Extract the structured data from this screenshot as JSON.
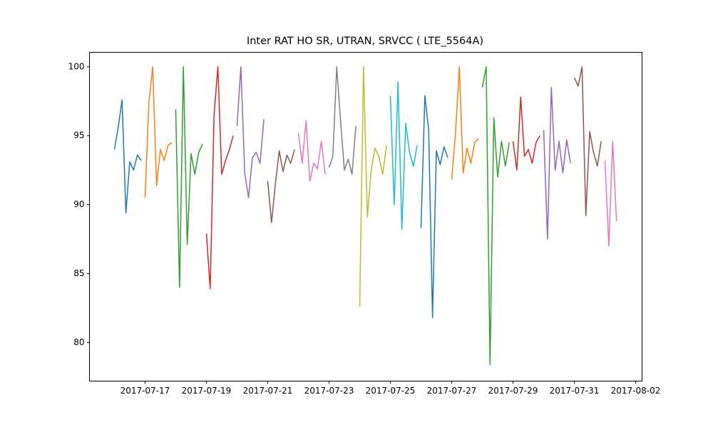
{
  "chart_data": {
    "type": "line",
    "title": "Inter RAT HO SR, UTRAN, SRVCC ( LTE_5564A)",
    "xlim": [
      "2017-07-15 04:30",
      "2017-08-02 05:00"
    ],
    "xticks": [
      "2017-07-17",
      "2017-07-19",
      "2017-07-21",
      "2017-07-23",
      "2017-07-25",
      "2017-07-27",
      "2017-07-29",
      "2017-07-31",
      "2017-08-02"
    ],
    "ylim": [
      77.2,
      101.05
    ],
    "yticks": [
      80,
      85,
      90,
      95,
      100
    ],
    "grid": false,
    "series": [
      {
        "color": "#1f77b4",
        "x": [
          "2017-07-16 00:00",
          "2017-07-16 03:00",
          "2017-07-16 06:00",
          "2017-07-16 09:00",
          "2017-07-16 12:00",
          "2017-07-16 15:00",
          "2017-07-16 18:00",
          "2017-07-16 21:00"
        ],
        "values": [
          94,
          95.6,
          97.6,
          89.4,
          93.1,
          92.5,
          93.6,
          93.2
        ]
      },
      {
        "color": "#ff7f0e",
        "x": [
          "2017-07-17 00:00",
          "2017-07-17 03:00",
          "2017-07-17 06:00",
          "2017-07-17 09:00",
          "2017-07-17 12:00",
          "2017-07-17 15:00",
          "2017-07-17 18:00",
          "2017-07-17 21:00"
        ],
        "values": [
          90.5,
          97.4,
          100,
          91.4,
          94,
          93.2,
          94.3,
          94.5
        ]
      },
      {
        "color": "#2ca02c",
        "x": [
          "2017-07-18 00:00",
          "2017-07-18 03:00",
          "2017-07-18 06:00",
          "2017-07-18 09:00",
          "2017-07-18 12:00",
          "2017-07-18 15:00",
          "2017-07-18 18:00",
          "2017-07-18 21:00"
        ],
        "values": [
          96.9,
          84,
          100,
          87.1,
          93.7,
          92.2,
          93.8,
          94.4
        ]
      },
      {
        "color": "#d62728",
        "x": [
          "2017-07-19 00:00",
          "2017-07-19 03:00",
          "2017-07-19 06:00",
          "2017-07-19 09:00",
          "2017-07-19 12:00",
          "2017-07-19 15:00",
          "2017-07-19 18:00",
          "2017-07-19 21:00"
        ],
        "values": [
          87.9,
          83.9,
          96.5,
          100,
          92.2,
          93.2,
          94,
          95
        ]
      },
      {
        "color": "#9467bd",
        "x": [
          "2017-07-20 00:00",
          "2017-07-20 03:00",
          "2017-07-20 06:00",
          "2017-07-20 09:00",
          "2017-07-20 12:00",
          "2017-07-20 15:00",
          "2017-07-20 18:00",
          "2017-07-20 21:00"
        ],
        "values": [
          95.7,
          100,
          92.3,
          90.5,
          93.4,
          93.8,
          93,
          96.2
        ]
      },
      {
        "color": "#8c564b",
        "x": [
          "2017-07-21 00:00",
          "2017-07-21 03:00",
          "2017-07-21 06:00",
          "2017-07-21 09:00",
          "2017-07-21 12:00",
          "2017-07-21 15:00",
          "2017-07-21 18:00",
          "2017-07-21 21:00"
        ],
        "values": [
          91.7,
          88.7,
          91.5,
          93.9,
          92.4,
          93.6,
          93,
          94
        ]
      },
      {
        "color": "#e377c2",
        "x": [
          "2017-07-22 00:00",
          "2017-07-22 03:00",
          "2017-07-22 06:00",
          "2017-07-22 09:00",
          "2017-07-22 12:00",
          "2017-07-22 15:00",
          "2017-07-22 18:00",
          "2017-07-22 21:00"
        ],
        "values": [
          95.2,
          93,
          96.1,
          91.7,
          93,
          92.6,
          94.6,
          92.2
        ]
      },
      {
        "color": "#7f7f7f",
        "x": [
          "2017-07-23 00:00",
          "2017-07-23 03:00",
          "2017-07-23 06:00",
          "2017-07-23 09:00",
          "2017-07-23 12:00",
          "2017-07-23 15:00",
          "2017-07-23 18:00",
          "2017-07-23 21:00"
        ],
        "values": [
          92.7,
          93.5,
          100,
          96.1,
          92.5,
          93.3,
          92.2,
          95.7
        ]
      },
      {
        "color": "#bcbd22",
        "x": [
          "2017-07-24 00:00",
          "2017-07-24 03:00",
          "2017-07-24 06:00",
          "2017-07-24 09:00",
          "2017-07-24 12:00",
          "2017-07-24 15:00",
          "2017-07-24 18:00",
          "2017-07-24 21:00"
        ],
        "values": [
          82.6,
          100,
          89.1,
          92.5,
          94.1,
          93.5,
          92.2,
          94.3
        ]
      },
      {
        "color": "#17becf",
        "x": [
          "2017-07-25 00:00",
          "2017-07-25 03:00",
          "2017-07-25 06:00",
          "2017-07-25 09:00",
          "2017-07-25 12:00",
          "2017-07-25 15:00",
          "2017-07-25 18:00",
          "2017-07-25 21:00"
        ],
        "values": [
          97.9,
          90,
          98.9,
          88.2,
          95.9,
          93.8,
          92.8,
          94.3
        ]
      },
      {
        "color": "#1f77b4",
        "x": [
          "2017-07-26 00:00",
          "2017-07-26 03:00",
          "2017-07-26 06:00",
          "2017-07-26 09:00",
          "2017-07-26 12:00",
          "2017-07-26 15:00",
          "2017-07-26 18:00",
          "2017-07-26 21:00"
        ],
        "values": [
          88.3,
          97.9,
          95.4,
          81.8,
          93.9,
          92.9,
          94.2,
          93.4
        ]
      },
      {
        "color": "#ff7f0e",
        "x": [
          "2017-07-27 00:00",
          "2017-07-27 03:00",
          "2017-07-27 06:00",
          "2017-07-27 09:00",
          "2017-07-27 12:00",
          "2017-07-27 15:00",
          "2017-07-27 18:00",
          "2017-07-27 21:00"
        ],
        "values": [
          91.8,
          95.2,
          100,
          92.3,
          94.1,
          93,
          94.5,
          94.8
        ]
      },
      {
        "color": "#2ca02c",
        "x": [
          "2017-07-28 00:00",
          "2017-07-28 03:00",
          "2017-07-28 06:00",
          "2017-07-28 09:00",
          "2017-07-28 12:00",
          "2017-07-28 15:00",
          "2017-07-28 18:00",
          "2017-07-28 21:00"
        ],
        "values": [
          98.5,
          100,
          78.4,
          96.3,
          92,
          94.6,
          92.8,
          94.5
        ]
      },
      {
        "color": "#d62728",
        "x": [
          "2017-07-29 00:00",
          "2017-07-29 03:00",
          "2017-07-29 06:00",
          "2017-07-29 09:00",
          "2017-07-29 12:00",
          "2017-07-29 15:00",
          "2017-07-29 18:00",
          "2017-07-29 21:00"
        ],
        "values": [
          94.6,
          92.5,
          97.8,
          93.5,
          94,
          93,
          94.5,
          95
        ]
      },
      {
        "color": "#9467bd",
        "x": [
          "2017-07-30 00:00",
          "2017-07-30 03:00",
          "2017-07-30 06:00",
          "2017-07-30 09:00",
          "2017-07-30 12:00",
          "2017-07-30 15:00",
          "2017-07-30 18:00",
          "2017-07-30 21:00"
        ],
        "values": [
          95.4,
          87.5,
          98.5,
          92.5,
          94.6,
          92.3,
          94.7,
          93
        ]
      },
      {
        "color": "#8c564b",
        "x": [
          "2017-07-31 00:00",
          "2017-07-31 03:00",
          "2017-07-31 06:00",
          "2017-07-31 09:00",
          "2017-07-31 12:00",
          "2017-07-31 15:00",
          "2017-07-31 18:00",
          "2017-07-31 21:00"
        ],
        "values": [
          99.2,
          98.6,
          100,
          89.2,
          95.3,
          93.8,
          92.8,
          94.6
        ]
      },
      {
        "color": "#e377c2",
        "x": [
          "2017-08-01 00:00",
          "2017-08-01 03:00",
          "2017-08-01 06:00",
          "2017-08-01 09:00"
        ],
        "values": [
          93.2,
          87,
          94.6,
          88.8
        ]
      }
    ]
  }
}
